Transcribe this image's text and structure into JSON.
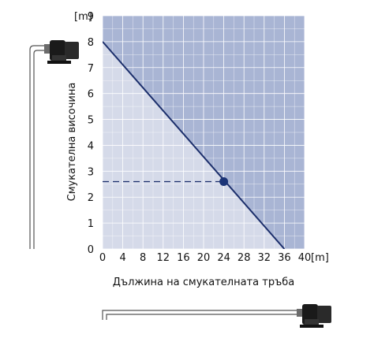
{
  "chart_data": {
    "type": "area",
    "xlabel": "Дължина на смукателната тръба",
    "ylabel": "Смукателна височина",
    "x_unit": "[m]",
    "y_unit": "[m]",
    "xlim": [
      0,
      40
    ],
    "ylim": [
      0,
      9
    ],
    "x_ticks": [
      0,
      4,
      8,
      12,
      16,
      20,
      24,
      28,
      32,
      36,
      40
    ],
    "y_ticks": [
      0,
      1,
      2,
      3,
      4,
      5,
      6,
      7,
      8,
      9
    ],
    "grid": true,
    "series": [
      {
        "x": [
          0,
          36
        ],
        "y": [
          8,
          0
        ]
      }
    ],
    "annotations": [
      {
        "type": "point",
        "x": 24,
        "y": 2.6
      },
      {
        "type": "dashed-guide",
        "x": [
          0,
          24
        ],
        "y": [
          2.6,
          2.6
        ]
      }
    ],
    "colors": {
      "region_below": "#d5dae9",
      "region_above": "#a9b5d4",
      "line": "#1b2e6b",
      "marker": "#1b3477",
      "grid": "#ffffff"
    },
    "icons": [
      "pump-icon",
      "suction-pipe-icon"
    ]
  }
}
